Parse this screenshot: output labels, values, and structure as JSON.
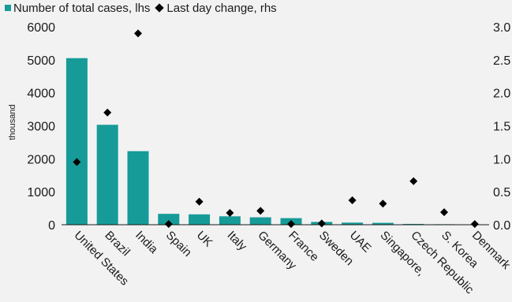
{
  "legend": {
    "bar_label": "Number of total cases, lhs",
    "marker_label": "Last day change, rhs"
  },
  "chart_data": {
    "type": "bar",
    "categories": [
      "United States",
      "Brazil",
      "India",
      "Spain",
      "UK",
      "Italy",
      "Germany",
      "France",
      "Sweden",
      "UAE",
      "Singapore,",
      "Czech Republic",
      "S. Korea",
      "Denmark"
    ],
    "series": [
      {
        "name": "Number of total cases, lhs",
        "type": "bar",
        "axis": "left",
        "color": "#169b98",
        "values": [
          5050,
          3030,
          2230,
          330,
          315,
          255,
          225,
          200,
          85,
          65,
          58,
          25,
          15,
          12
        ]
      },
      {
        "name": "Last day change, rhs",
        "type": "scatter",
        "marker": "diamond",
        "axis": "right",
        "color": "#000000",
        "values": [
          0.95,
          1.7,
          2.9,
          0.01,
          0.35,
          0.18,
          0.21,
          0.01,
          0.02,
          0.37,
          0.32,
          0.66,
          0.19,
          0.01
        ]
      }
    ],
    "ylabel": "thousand",
    "y_left": {
      "min": 0,
      "max": 6000,
      "ticks": [
        "0",
        "1000",
        "2000",
        "3000",
        "4000",
        "5000",
        "6000"
      ]
    },
    "y_right": {
      "min": 0,
      "max": 3.0,
      "ticks": [
        "0.0",
        "0.5",
        "1.0",
        "1.5",
        "2.0",
        "2.5",
        "3.0"
      ]
    },
    "grid": false,
    "legend_position": "top-left"
  }
}
